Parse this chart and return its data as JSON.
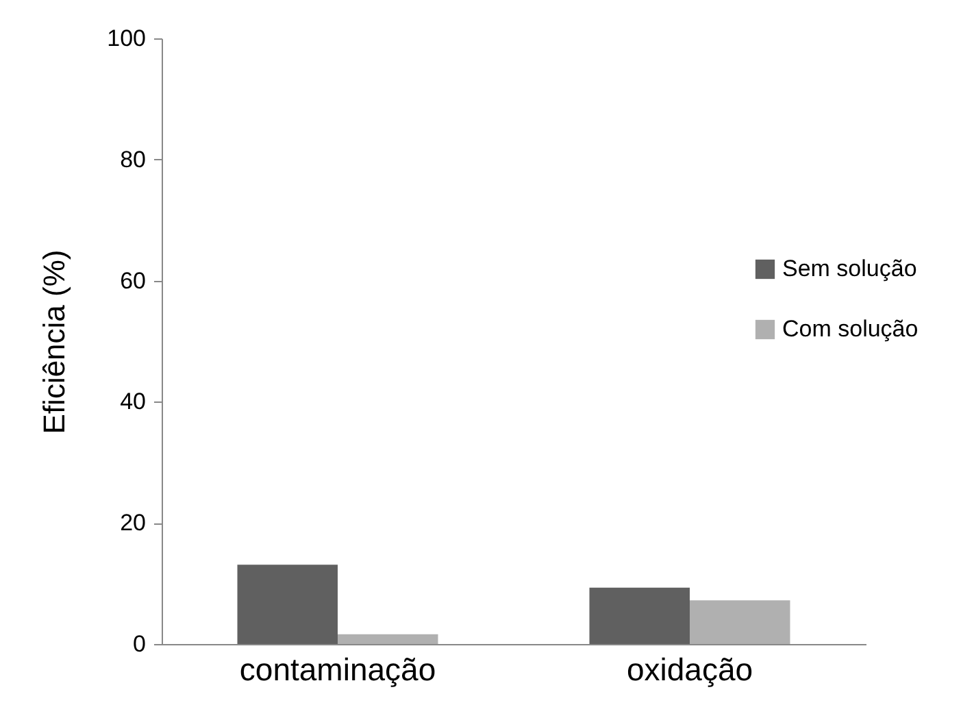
{
  "chart_data": {
    "type": "bar",
    "ylabel": "Eficiência (%)",
    "categories": [
      "contaminação",
      "oxidação"
    ],
    "series": [
      {
        "name": "Sem solução",
        "color": "#606060",
        "values": [
          13.1,
          9.3
        ]
      },
      {
        "name": "Com solução",
        "color": "#b0b0b0",
        "values": [
          1.6,
          7.2
        ]
      }
    ],
    "ylim": [
      0,
      100
    ],
    "yticks": [
      0,
      20,
      40,
      60,
      80,
      100
    ],
    "grid": false,
    "legend": "right"
  }
}
